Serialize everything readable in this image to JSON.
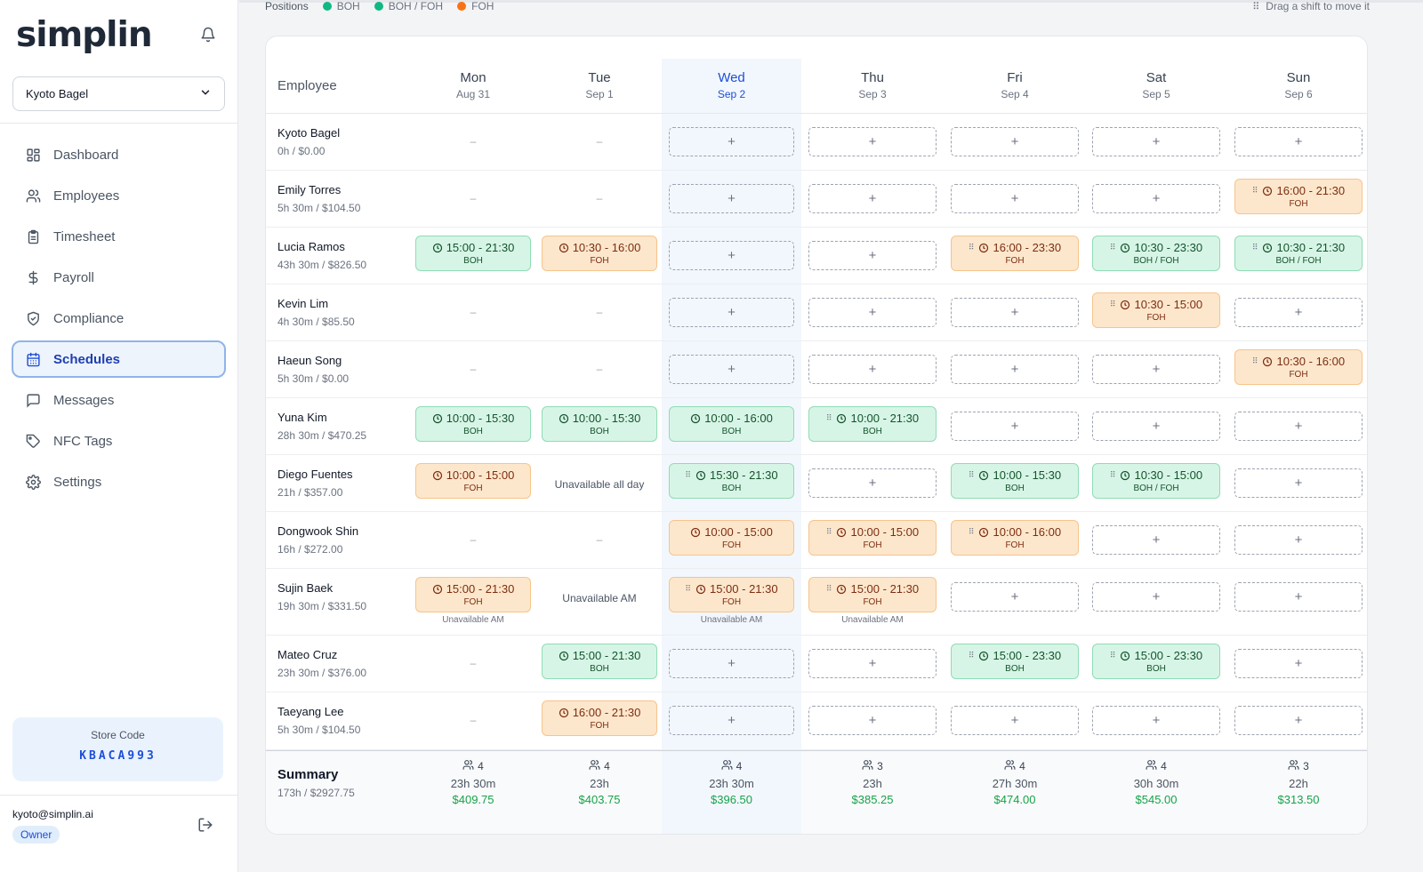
{
  "app": {
    "logo": "simplin"
  },
  "store": {
    "selected": "Kyoto Bagel"
  },
  "nav": [
    {
      "label": "Dashboard",
      "icon": "dashboard-icon"
    },
    {
      "label": "Employees",
      "icon": "users-icon"
    },
    {
      "label": "Timesheet",
      "icon": "clipboard-icon"
    },
    {
      "label": "Payroll",
      "icon": "dollar-icon"
    },
    {
      "label": "Compliance",
      "icon": "shield-icon"
    },
    {
      "label": "Schedules",
      "icon": "calendar-icon",
      "active": true
    },
    {
      "label": "Messages",
      "icon": "message-icon"
    },
    {
      "label": "NFC Tags",
      "icon": "tag-icon"
    },
    {
      "label": "Settings",
      "icon": "gear-icon"
    }
  ],
  "store_code": {
    "label": "Store Code",
    "value": "KBACA993"
  },
  "user": {
    "email": "kyoto@simplin.ai",
    "role": "Owner"
  },
  "legend": {
    "label": "Positions",
    "items": [
      {
        "label": "BOH",
        "color": "#10b981"
      },
      {
        "label": "BOH / FOH",
        "color": "#10b981"
      },
      {
        "label": "FOH",
        "color": "#f97316"
      }
    ]
  },
  "drag_hint": "Drag a shift to move it",
  "header": {
    "employee_label": "Employee"
  },
  "days": [
    {
      "name": "Mon",
      "date": "Aug 31"
    },
    {
      "name": "Tue",
      "date": "Sep 1"
    },
    {
      "name": "Wed",
      "date": "Sep 2",
      "today": true
    },
    {
      "name": "Thu",
      "date": "Sep 3"
    },
    {
      "name": "Fri",
      "date": "Sep 4"
    },
    {
      "name": "Sat",
      "date": "Sep 5"
    },
    {
      "name": "Sun",
      "date": "Sep 6"
    }
  ],
  "employees": [
    {
      "name": "Kyoto Bagel",
      "sub": "0h / $0.00",
      "cells": [
        {
          "type": "dash",
          "text": "–"
        },
        {
          "type": "dash",
          "text": "–"
        },
        {
          "type": "add",
          "text": "+"
        },
        {
          "type": "add",
          "text": "+"
        },
        {
          "type": "add",
          "text": "+"
        },
        {
          "type": "add",
          "text": "+"
        },
        {
          "type": "add",
          "text": "+"
        }
      ]
    },
    {
      "name": "Emily Torres",
      "sub": "5h 30m / $104.50",
      "cells": [
        {
          "type": "dash",
          "text": "–"
        },
        {
          "type": "dash",
          "text": "–"
        },
        {
          "type": "add",
          "text": "+"
        },
        {
          "type": "add",
          "text": "+"
        },
        {
          "type": "add",
          "text": "+"
        },
        {
          "type": "add",
          "text": "+"
        },
        {
          "type": "shift",
          "pos": "foh",
          "time": "16:00 - 21:30",
          "label": "FOH",
          "grip": true
        }
      ]
    },
    {
      "name": "Lucia Ramos",
      "sub": "43h 30m / $826.50",
      "cells": [
        {
          "type": "shift",
          "pos": "boh",
          "time": "15:00 - 21:30",
          "label": "BOH"
        },
        {
          "type": "shift",
          "pos": "foh",
          "time": "10:30 - 16:00",
          "label": "FOH"
        },
        {
          "type": "add",
          "text": "+"
        },
        {
          "type": "add",
          "text": "+"
        },
        {
          "type": "shift",
          "pos": "foh",
          "time": "16:00 - 23:30",
          "label": "FOH",
          "grip": true
        },
        {
          "type": "shift",
          "pos": "boh",
          "time": "10:30 - 23:30",
          "label": "BOH / FOH",
          "grip": true
        },
        {
          "type": "shift",
          "pos": "boh",
          "time": "10:30 - 21:30",
          "label": "BOH / FOH",
          "grip": true
        }
      ]
    },
    {
      "name": "Kevin Lim",
      "sub": "4h 30m / $85.50",
      "cells": [
        {
          "type": "dash",
          "text": "–"
        },
        {
          "type": "dash",
          "text": "–"
        },
        {
          "type": "add",
          "text": "+"
        },
        {
          "type": "add",
          "text": "+"
        },
        {
          "type": "add",
          "text": "+"
        },
        {
          "type": "shift",
          "pos": "foh",
          "time": "10:30 - 15:00",
          "label": "FOH",
          "grip": true
        },
        {
          "type": "add",
          "text": "+"
        }
      ]
    },
    {
      "name": "Haeun Song",
      "sub": "5h 30m / $0.00",
      "cells": [
        {
          "type": "dash",
          "text": "–"
        },
        {
          "type": "dash",
          "text": "–"
        },
        {
          "type": "add",
          "text": "+"
        },
        {
          "type": "add",
          "text": "+"
        },
        {
          "type": "add",
          "text": "+"
        },
        {
          "type": "add",
          "text": "+"
        },
        {
          "type": "shift",
          "pos": "foh",
          "time": "10:30 - 16:00",
          "label": "FOH",
          "grip": true
        }
      ]
    },
    {
      "name": "Yuna Kim",
      "sub": "28h 30m / $470.25",
      "cells": [
        {
          "type": "shift",
          "pos": "boh",
          "time": "10:00 - 15:30",
          "label": "BOH"
        },
        {
          "type": "shift",
          "pos": "boh",
          "time": "10:00 - 15:30",
          "label": "BOH"
        },
        {
          "type": "shift",
          "pos": "boh",
          "time": "10:00 - 16:00",
          "label": "BOH"
        },
        {
          "type": "shift",
          "pos": "boh",
          "time": "10:00 - 21:30",
          "label": "BOH",
          "grip": true
        },
        {
          "type": "add",
          "text": "+"
        },
        {
          "type": "add",
          "text": "+"
        },
        {
          "type": "add",
          "text": "+"
        }
      ]
    },
    {
      "name": "Diego Fuentes",
      "sub": "21h / $357.00",
      "cells": [
        {
          "type": "shift",
          "pos": "foh",
          "time": "10:00 - 15:00",
          "label": "FOH"
        },
        {
          "type": "unavail",
          "text": "Unavailable all day"
        },
        {
          "type": "shift",
          "pos": "boh",
          "time": "15:30 - 21:30",
          "label": "BOH",
          "grip": true
        },
        {
          "type": "add",
          "text": "+"
        },
        {
          "type": "shift",
          "pos": "boh",
          "time": "10:00 - 15:30",
          "label": "BOH",
          "grip": true
        },
        {
          "type": "shift",
          "pos": "boh",
          "time": "10:30 - 15:00",
          "label": "BOH / FOH",
          "grip": true
        },
        {
          "type": "add",
          "text": "+"
        }
      ]
    },
    {
      "name": "Dongwook Shin",
      "sub": "16h / $272.00",
      "cells": [
        {
          "type": "dash",
          "text": "–"
        },
        {
          "type": "dash",
          "text": "–"
        },
        {
          "type": "shift",
          "pos": "foh",
          "time": "10:00 - 15:00",
          "label": "FOH"
        },
        {
          "type": "shift",
          "pos": "foh",
          "time": "10:00 - 15:00",
          "label": "FOH",
          "grip": true
        },
        {
          "type": "shift",
          "pos": "foh",
          "time": "10:00 - 16:00",
          "label": "FOH",
          "grip": true
        },
        {
          "type": "add",
          "text": "+"
        },
        {
          "type": "add",
          "text": "+"
        }
      ]
    },
    {
      "name": "Sujin Baek",
      "sub": "19h 30m / $331.50",
      "tall": true,
      "cells": [
        {
          "type": "shift",
          "pos": "foh",
          "time": "15:00 - 21:30",
          "label": "FOH",
          "note": "Unavailable AM"
        },
        {
          "type": "unavail",
          "text": "Unavailable AM"
        },
        {
          "type": "shift",
          "pos": "foh",
          "time": "15:00 - 21:30",
          "label": "FOH",
          "grip": true,
          "note": "Unavailable AM"
        },
        {
          "type": "shift",
          "pos": "foh",
          "time": "15:00 - 21:30",
          "label": "FOH",
          "grip": true,
          "note": "Unavailable AM"
        },
        {
          "type": "add",
          "text": "+"
        },
        {
          "type": "add",
          "text": "+"
        },
        {
          "type": "add",
          "text": "+"
        }
      ]
    },
    {
      "name": "Mateo Cruz",
      "sub": "23h 30m / $376.00",
      "cells": [
        {
          "type": "dash",
          "text": "–"
        },
        {
          "type": "shift",
          "pos": "boh",
          "time": "15:00 - 21:30",
          "label": "BOH"
        },
        {
          "type": "add",
          "text": "+"
        },
        {
          "type": "add",
          "text": "+"
        },
        {
          "type": "shift",
          "pos": "boh",
          "time": "15:00 - 23:30",
          "label": "BOH",
          "grip": true
        },
        {
          "type": "shift",
          "pos": "boh",
          "time": "15:00 - 23:30",
          "label": "BOH",
          "grip": true
        },
        {
          "type": "add",
          "text": "+"
        }
      ]
    },
    {
      "name": "Taeyang Lee",
      "sub": "5h 30m / $104.50",
      "cells": [
        {
          "type": "dash",
          "text": "–"
        },
        {
          "type": "shift",
          "pos": "foh",
          "time": "16:00 - 21:30",
          "label": "FOH"
        },
        {
          "type": "add",
          "text": "+"
        },
        {
          "type": "add",
          "text": "+"
        },
        {
          "type": "add",
          "text": "+"
        },
        {
          "type": "add",
          "text": "+"
        },
        {
          "type": "add",
          "text": "+"
        }
      ]
    }
  ],
  "summary": {
    "label": "Summary",
    "total": "173h / $2927.75",
    "days": [
      {
        "count": "4",
        "hours": "23h 30m",
        "cost": "$409.75"
      },
      {
        "count": "4",
        "hours": "23h",
        "cost": "$403.75"
      },
      {
        "count": "4",
        "hours": "23h 30m",
        "cost": "$396.50"
      },
      {
        "count": "3",
        "hours": "23h",
        "cost": "$385.25"
      },
      {
        "count": "4",
        "hours": "27h 30m",
        "cost": "$474.00"
      },
      {
        "count": "4",
        "hours": "30h 30m",
        "cost": "$545.00"
      },
      {
        "count": "3",
        "hours": "22h",
        "cost": "$313.50"
      }
    ]
  }
}
